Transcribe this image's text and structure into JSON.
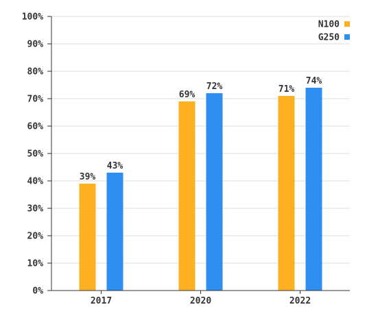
{
  "chart_data": {
    "type": "bar",
    "categories": [
      "2017",
      "2020",
      "2022"
    ],
    "series": [
      {
        "name": "N100",
        "values": [
          39,
          69,
          71
        ],
        "labels": [
          "39%",
          "69%",
          "71%"
        ],
        "color": "#FDB022"
      },
      {
        "name": "G250",
        "values": [
          43,
          72,
          74
        ],
        "labels": [
          "43%",
          "72%",
          "74%"
        ],
        "color": "#2E8FF0"
      }
    ],
    "ylim": [
      0,
      100
    ],
    "y_ticks": [
      "0%",
      "10%",
      "20%",
      "30%",
      "40%",
      "50%",
      "60%",
      "70%",
      "80%",
      "90%",
      "100%"
    ],
    "grid": true,
    "legend_position": "top-right",
    "title": "",
    "xlabel": "",
    "ylabel": ""
  }
}
